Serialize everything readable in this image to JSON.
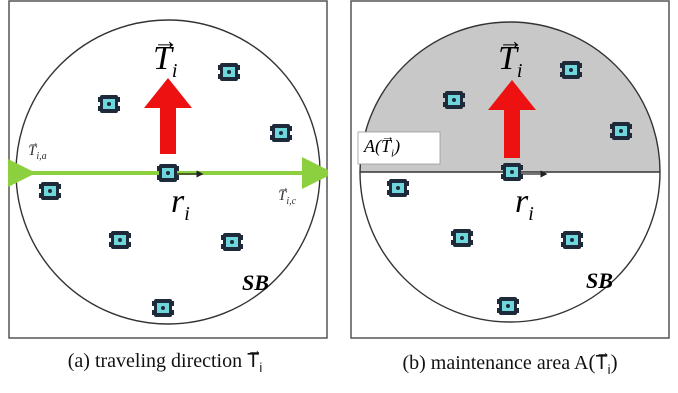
{
  "panel_a": {
    "vector_label": "T",
    "vector_subscript": "i",
    "radius_label": "r",
    "radius_subscript": "i",
    "left_vector_label": "T",
    "left_vector_subscript": "i,a",
    "right_vector_label": "T",
    "right_vector_subscript": "i,c",
    "region_label": "SB",
    "caption_prefix": "(a) traveling direction",
    "caption_symbol": "T",
    "caption_subscript": "i"
  },
  "panel_b": {
    "vector_label": "T",
    "vector_subscript": "i",
    "radius_label": "r",
    "radius_subscript": "i",
    "area_label": "A(",
    "area_symbol": "T",
    "area_subscript": "i",
    "area_close": ")",
    "region_label": "SB",
    "caption_prefix": "(b) maintenance area A",
    "caption_symbol": "T",
    "caption_subscript": "i"
  },
  "colors": {
    "arrow_red": "#ee1111",
    "axis_green": "#8ccf3f",
    "robot_cyan": "#6fd6dc",
    "robot_dark": "#1e2a3a",
    "shaded_area": "#c8c8c8",
    "frame": "#555555"
  },
  "icons": [
    "robot-icon"
  ]
}
